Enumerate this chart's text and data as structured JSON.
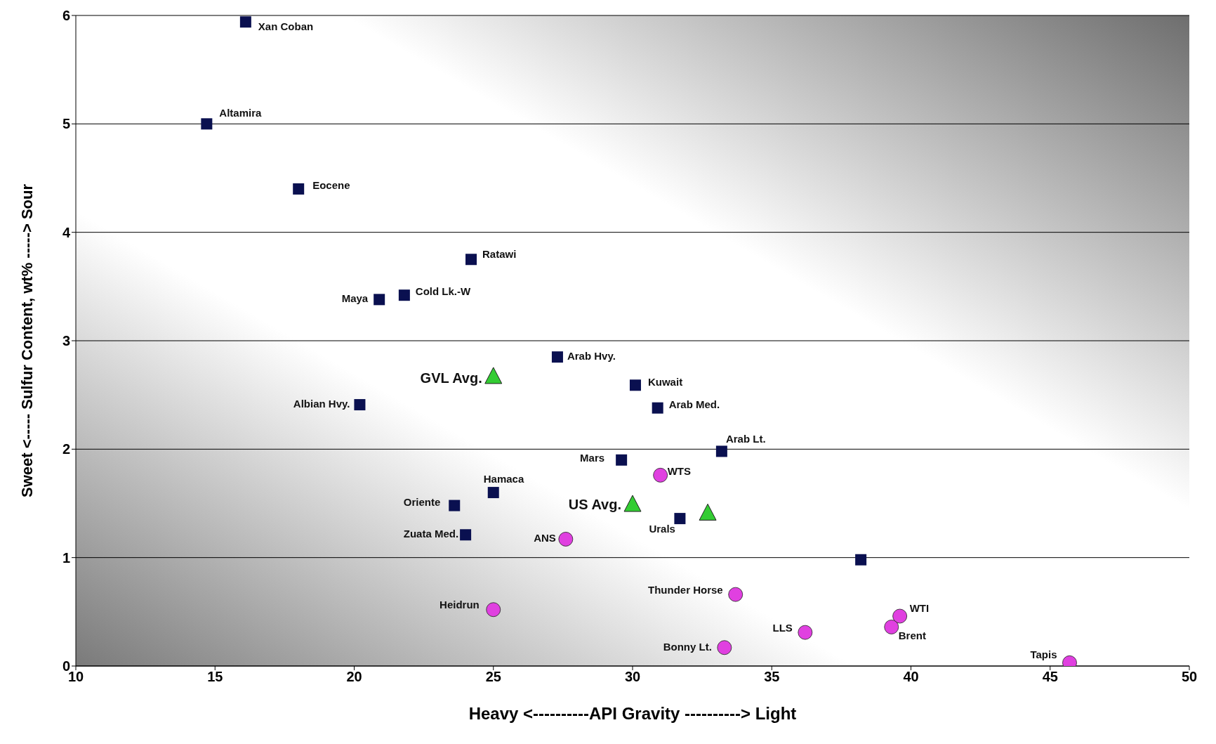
{
  "chart_data": {
    "type": "scatter",
    "xlabel": "Heavy <----------API Gravity ----------> Light",
    "ylabel": "Sweet <----- Sulfur Content, wt% -----> Sour",
    "xlim": [
      10,
      50
    ],
    "xticks": [
      10,
      15,
      20,
      25,
      30,
      35,
      40,
      45,
      50
    ],
    "ylim": [
      0,
      6
    ],
    "yticks": [
      0,
      1,
      2,
      3,
      4,
      5,
      6
    ],
    "grid": "y",
    "series": [
      {
        "color": "#0a1050",
        "marker": "square",
        "x": [
          16.1,
          14.7,
          18.0,
          24.2,
          20.9,
          21.8,
          27.3,
          30.1,
          30.9,
          20.2,
          33.2,
          29.6,
          25.0,
          23.6,
          24.0,
          31.7,
          38.2
        ],
        "values": [
          5.94,
          5.0,
          4.4,
          3.75,
          3.38,
          3.42,
          2.85,
          2.59,
          2.38,
          2.41,
          1.98,
          1.9,
          1.6,
          1.48,
          1.21,
          1.36,
          0.98
        ]
      },
      {
        "color": "#e040e0",
        "marker": "circle",
        "x": [
          31.0,
          27.6,
          25.0,
          33.7,
          33.3,
          36.2,
          39.6,
          39.3,
          45.7
        ],
        "values": [
          1.76,
          1.17,
          0.52,
          0.66,
          0.17,
          0.31,
          0.46,
          0.36,
          0.03
        ]
      },
      {
        "color": "#33cc33",
        "marker": "triangle",
        "x": [
          25.0,
          30.0,
          32.7
        ],
        "values": [
          2.67,
          1.49,
          1.41
        ]
      }
    ],
    "annotations": [
      {
        "text": "Xan Coban",
        "x": 16.1,
        "y": 5.94
      },
      {
        "text": "Altamira",
        "x": 14.7,
        "y": 5.0
      },
      {
        "text": "Eocene",
        "x": 18.0,
        "y": 4.4
      },
      {
        "text": "Ratawi",
        "x": 24.2,
        "y": 3.75
      },
      {
        "text": "Maya",
        "x": 20.9,
        "y": 3.38
      },
      {
        "text": "Cold Lk.-W",
        "x": 21.8,
        "y": 3.42
      },
      {
        "text": "Arab Hvy.",
        "x": 27.3,
        "y": 2.85
      },
      {
        "text": "Kuwait",
        "x": 30.1,
        "y": 2.59
      },
      {
        "text": "Arab Med.",
        "x": 30.9,
        "y": 2.38
      },
      {
        "text": "Albian Hvy.",
        "x": 20.2,
        "y": 2.41
      },
      {
        "text": "Arab Lt.",
        "x": 33.2,
        "y": 1.98
      },
      {
        "text": "Mars",
        "x": 29.6,
        "y": 1.9
      },
      {
        "text": "Hamaca",
        "x": 25.0,
        "y": 1.6
      },
      {
        "text": "Oriente",
        "x": 23.6,
        "y": 1.48
      },
      {
        "text": "Zuata Med.",
        "x": 24.0,
        "y": 1.21
      },
      {
        "text": "Urals",
        "x": 31.7,
        "y": 1.36
      },
      {
        "text": "WTS",
        "x": 31.0,
        "y": 1.76
      },
      {
        "text": "ANS",
        "x": 27.6,
        "y": 1.17
      },
      {
        "text": "Heidrun",
        "x": 25.0,
        "y": 0.52
      },
      {
        "text": "Thunder Horse",
        "x": 33.7,
        "y": 0.66
      },
      {
        "text": "Bonny Lt.",
        "x": 33.3,
        "y": 0.17
      },
      {
        "text": "LLS",
        "x": 36.2,
        "y": 0.31
      },
      {
        "text": "WTI",
        "x": 39.6,
        "y": 0.46
      },
      {
        "text": "Brent",
        "x": 39.3,
        "y": 0.36
      },
      {
        "text": "Tapis",
        "x": 45.7,
        "y": 0.03
      },
      {
        "text": "GVL Avg.",
        "x": 25.0,
        "y": 2.67
      },
      {
        "text": "US Avg.",
        "x": 30.0,
        "y": 1.49
      }
    ]
  }
}
